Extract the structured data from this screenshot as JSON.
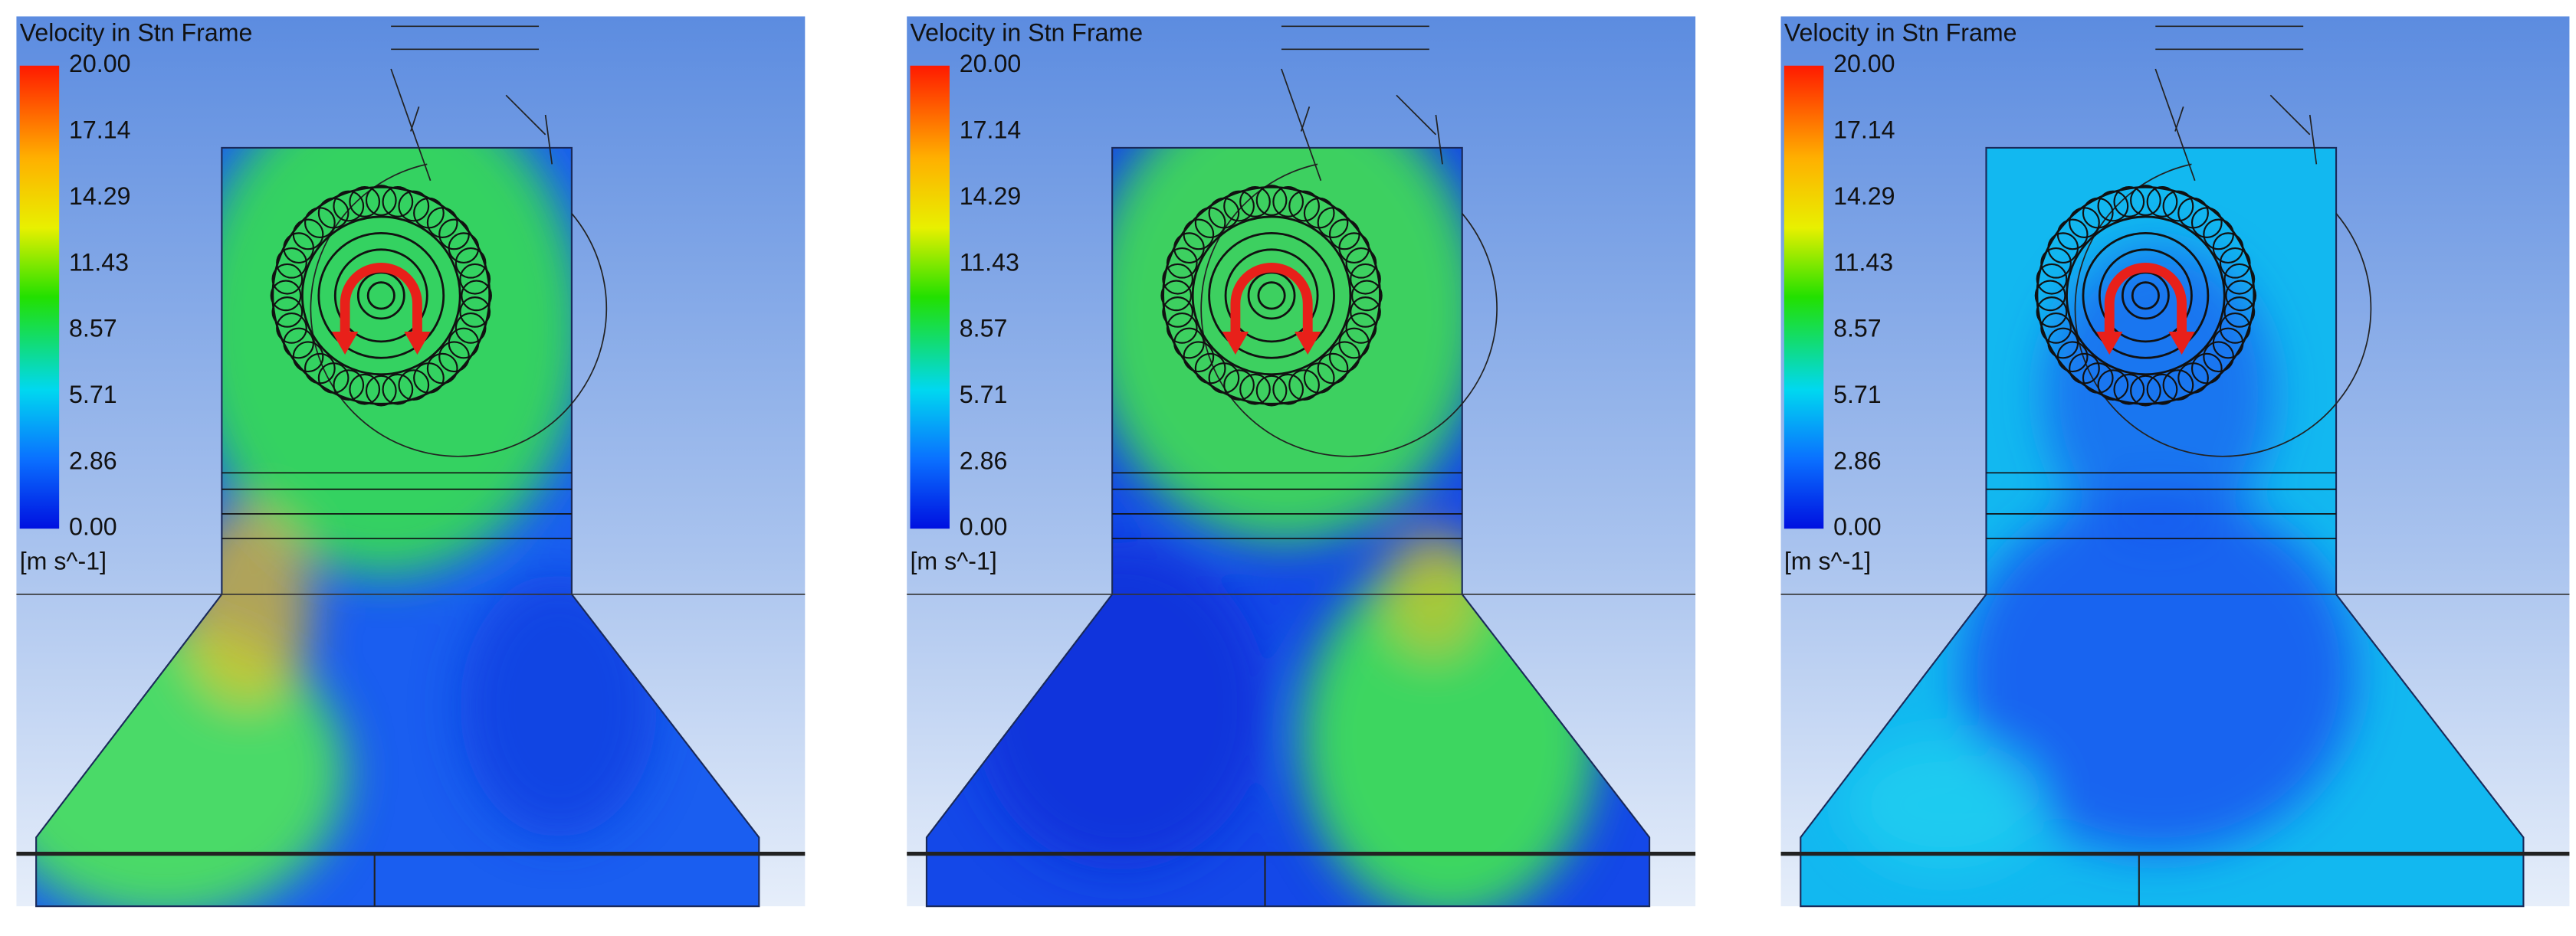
{
  "panels": [
    {
      "title": "Velocity in Stn Frame",
      "colorbar": {
        "labels": [
          "20.00",
          "17.14",
          "14.29",
          "11.43",
          "8.57",
          "5.71",
          "2.86",
          "0.00"
        ],
        "unit": "[m s^-1]"
      }
    },
    {
      "title": "Velocity in Stn Frame",
      "colorbar": {
        "labels": [
          "20.00",
          "17.14",
          "14.29",
          "11.43",
          "8.57",
          "5.71",
          "2.86",
          "0.00"
        ],
        "unit": "[m s^-1]"
      }
    },
    {
      "title": "Velocity in Stn Frame",
      "colorbar": {
        "labels": [
          "20.00",
          "17.14",
          "14.29",
          "11.43",
          "8.57",
          "5.71",
          "2.86",
          "0.00"
        ],
        "unit": "[m s^-1]"
      }
    }
  ]
}
